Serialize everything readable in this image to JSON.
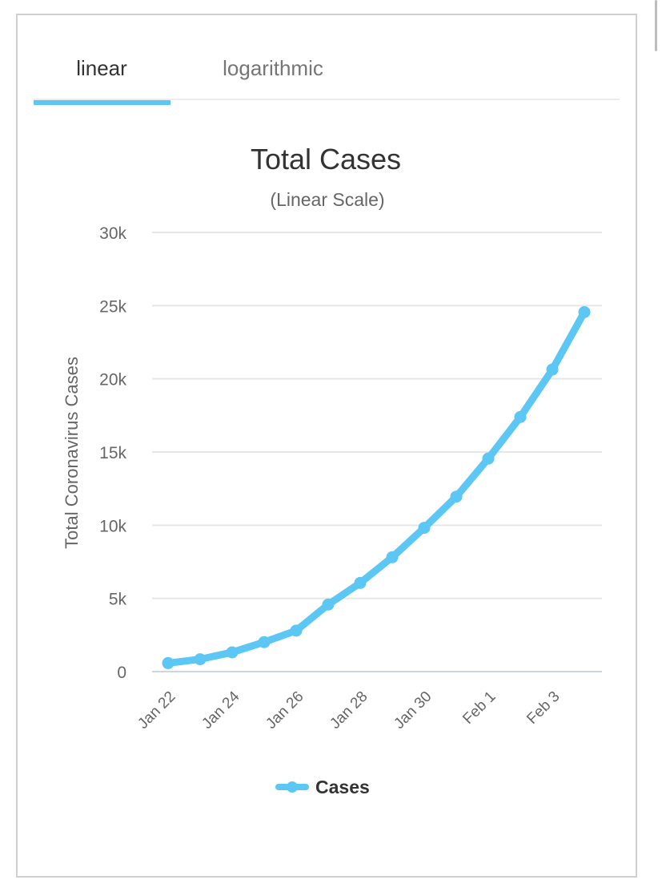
{
  "tabs": {
    "linear": "linear",
    "logarithmic": "logarithmic",
    "active": "linear"
  },
  "colors": {
    "accent": "#5cc6f4",
    "grid": "#e6e6e6",
    "axis": "#ccd6eb",
    "text_dark": "#333333",
    "text_muted": "#666666"
  },
  "chart_data": {
    "type": "line",
    "title": "Total Cases",
    "subtitle": "(Linear Scale)",
    "ylabel": "Total Coronavirus Cases",
    "xlabel": "",
    "ylim": [
      0,
      30000
    ],
    "yticks": [
      0,
      5000,
      10000,
      15000,
      20000,
      25000,
      30000
    ],
    "ytick_labels": [
      "0",
      "5k",
      "10k",
      "15k",
      "20k",
      "25k",
      "30k"
    ],
    "categories": [
      "Jan 22",
      "Jan 23",
      "Jan 24",
      "Jan 25",
      "Jan 26",
      "Jan 27",
      "Jan 28",
      "Jan 29",
      "Jan 30",
      "Jan 31",
      "Feb 1",
      "Feb 2",
      "Feb 3",
      "Feb 4"
    ],
    "xtick_labels": [
      "Jan 22",
      "Jan 24",
      "Jan 26",
      "Jan 28",
      "Jan 30",
      "Feb 1",
      "Feb 3"
    ],
    "series": [
      {
        "name": "Cases",
        "values": [
          580,
          845,
          1317,
          2015,
          2800,
          4581,
          6058,
          7813,
          9823,
          11950,
          14553,
          17391,
          20630,
          24554
        ]
      }
    ],
    "legend": "bottom-center",
    "grid": true
  }
}
